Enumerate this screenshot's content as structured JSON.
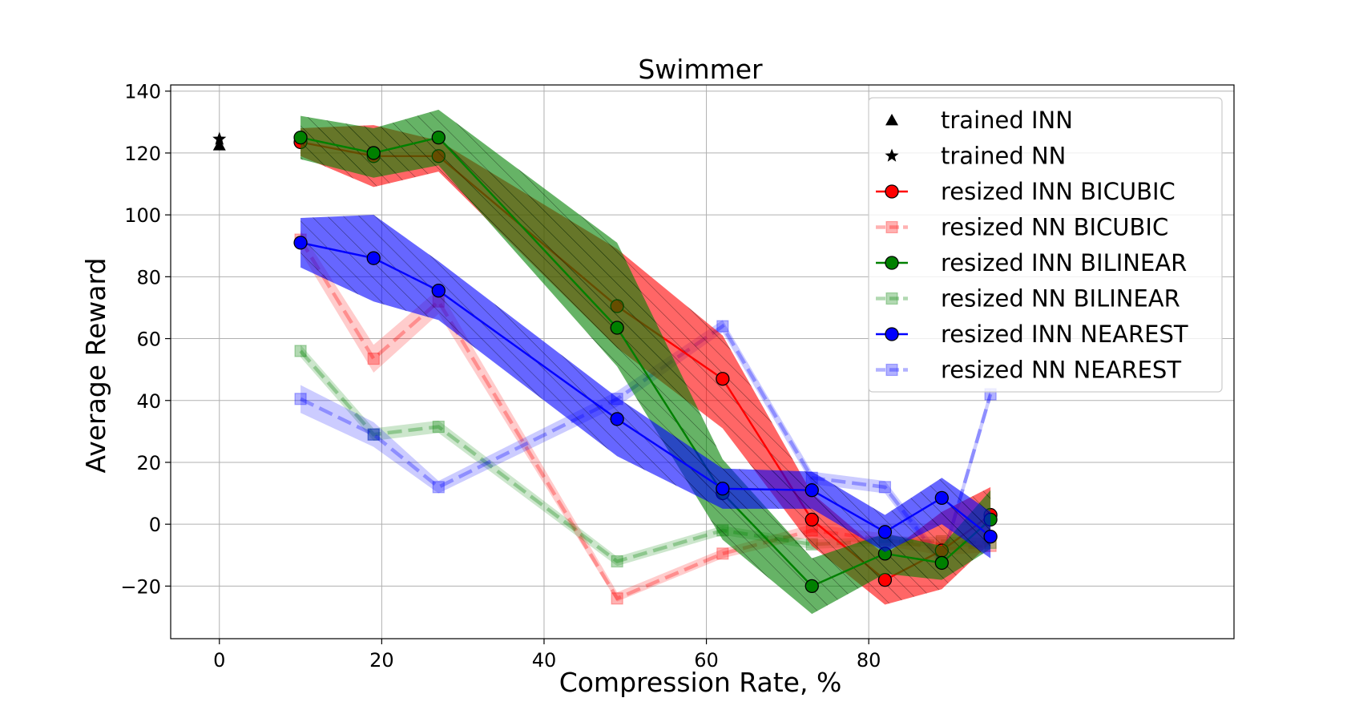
{
  "chart_data": {
    "type": "line",
    "title": "Swimmer",
    "xlabel": "Compression Rate, %",
    "ylabel": "Average Reward",
    "xlim": [
      -6,
      125
    ],
    "ylim": [
      -37,
      142
    ],
    "xticks": [
      0,
      20,
      40,
      60,
      80
    ],
    "xtick_labels": [
      "0",
      "20",
      "40",
      "60",
      "80"
    ],
    "yticks": [
      -20,
      0,
      20,
      40,
      60,
      80,
      100,
      120,
      140
    ],
    "ytick_labels": [
      "−20",
      "0",
      "20",
      "40",
      "60",
      "80",
      "100",
      "120",
      "140"
    ],
    "grid": true,
    "legend_position": "upper right",
    "colors": {
      "red": "#ff0000",
      "green": "#008000",
      "blue": "#0000ff"
    },
    "series": [
      {
        "name": "trained INN",
        "kind": "single",
        "marker": "triangle",
        "color": "#000000",
        "x": [
          0
        ],
        "y": [
          122.5
        ]
      },
      {
        "name": "trained NN",
        "kind": "single",
        "marker": "star",
        "color": "#000000",
        "x": [
          0
        ],
        "y": [
          124.5
        ]
      },
      {
        "name": "resized INN BICUBIC",
        "kind": "solid",
        "marker": "circle",
        "color": "#ff0000",
        "hatch": true,
        "x": [
          10,
          19,
          27,
          49,
          62,
          73,
          82,
          89,
          95
        ],
        "y": [
          123.5,
          119,
          119,
          70.5,
          47,
          1.5,
          -18,
          -8.5,
          3
        ],
        "lower": [
          119,
          109,
          114,
          57,
          31,
          -7,
          -26,
          -21,
          -6
        ],
        "upper": [
          128,
          129,
          124,
          89,
          61,
          10,
          -10,
          4,
          12
        ]
      },
      {
        "name": "resized NN BICUBIC",
        "kind": "dashed",
        "marker": "square",
        "color": "#ff0000",
        "x": [
          10,
          19,
          27,
          49,
          62,
          73,
          82,
          89,
          95
        ],
        "y": [
          92,
          53.5,
          72,
          -24,
          -9.5,
          -2,
          -5,
          -8,
          -7
        ],
        "lower": [
          88,
          49,
          68,
          -25,
          -11,
          -4,
          -7,
          -10,
          -9
        ],
        "upper": [
          95,
          58,
          76,
          -22,
          -8,
          0,
          -3,
          -6,
          -5
        ]
      },
      {
        "name": "resized INN BILINEAR",
        "kind": "solid",
        "marker": "circle",
        "color": "#008000",
        "hatch": true,
        "x": [
          10,
          19,
          27,
          49,
          62,
          73,
          82,
          89,
          95
        ],
        "y": [
          125,
          120,
          125,
          63.5,
          10,
          -20,
          -9.5,
          -12.5,
          1.5
        ],
        "lower": [
          118,
          112,
          116,
          51,
          -5,
          -29,
          -16,
          -18,
          -8
        ],
        "upper": [
          132,
          128,
          134,
          91,
          21,
          -11,
          -3,
          -7,
          11
        ]
      },
      {
        "name": "resized NN BILINEAR",
        "kind": "dashed",
        "marker": "square",
        "color": "#008000",
        "x": [
          10,
          19,
          27,
          49,
          62,
          73,
          82,
          89,
          95
        ],
        "y": [
          56,
          29,
          31.5,
          -12,
          -2,
          -6.5,
          -5.5,
          -5.5,
          -6
        ],
        "lower": [
          54,
          27,
          29.5,
          -13.5,
          -3.5,
          -8,
          -7,
          -7,
          -7.5
        ],
        "upper": [
          58,
          31,
          33.5,
          -10.5,
          -0.5,
          -5,
          -4,
          -4,
          -4.5
        ]
      },
      {
        "name": "resized INN NEAREST",
        "kind": "solid",
        "marker": "circle",
        "color": "#0000ff",
        "hatch": true,
        "x": [
          10,
          19,
          27,
          49,
          62,
          73,
          82,
          89,
          95
        ],
        "y": [
          91,
          86,
          75.5,
          34,
          11.5,
          11,
          -2.5,
          8.5,
          -4
        ],
        "lower": [
          83,
          72,
          66,
          22,
          5,
          5,
          -9,
          0,
          -11
        ],
        "upper": [
          99,
          100,
          85,
          41,
          18,
          17,
          3,
          15,
          4
        ]
      },
      {
        "name": "resized NN NEAREST",
        "kind": "dashed",
        "marker": "square",
        "color": "#0000ff",
        "x": [
          10,
          19,
          27,
          49,
          62,
          73,
          82,
          89,
          95
        ],
        "y": [
          40.5,
          29,
          12,
          40.5,
          64,
          15,
          12,
          -12,
          42
        ],
        "lower": [
          36,
          25,
          10,
          38,
          62,
          13,
          10,
          -14,
          40
        ],
        "upper": [
          45,
          33,
          14,
          43,
          66,
          17,
          14,
          -10,
          44
        ]
      }
    ]
  }
}
